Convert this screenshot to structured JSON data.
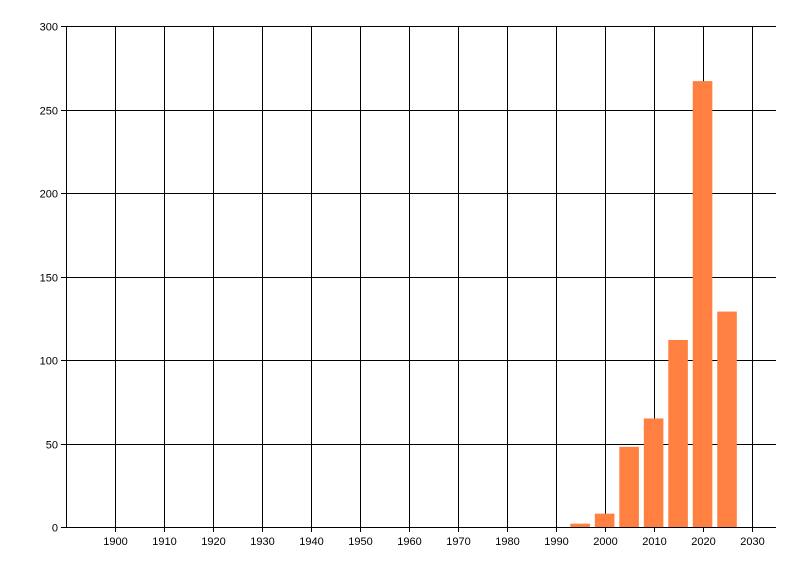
{
  "chart_data": {
    "type": "bar",
    "title": "",
    "xlabel": "",
    "ylabel": "",
    "x": [
      1995,
      2000,
      2005,
      2010,
      2015,
      2020,
      2025
    ],
    "values": [
      2,
      8,
      48,
      65,
      112,
      267,
      129
    ],
    "bar_width_years": 4,
    "xlim": [
      1890,
      2035
    ],
    "ylim": [
      0,
      300
    ],
    "xticks": [
      1900,
      1910,
      1920,
      1930,
      1940,
      1950,
      1960,
      1970,
      1980,
      1990,
      2000,
      2010,
      2020,
      2030
    ],
    "yticks": [
      0,
      50,
      100,
      150,
      200,
      250,
      300
    ],
    "grid": true,
    "legend": "none",
    "bar_color": "#FF8040",
    "grid_color": "#000000"
  }
}
